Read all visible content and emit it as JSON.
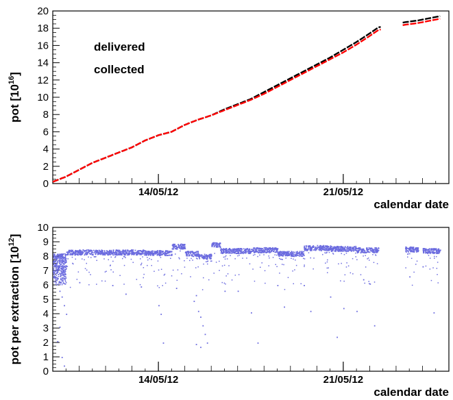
{
  "chart_data": [
    {
      "type": "line",
      "xlabel": "calendar date",
      "ylabel": "pot [10^16]",
      "ylabel_main": "pot [10",
      "ylabel_exp": "16",
      "ylabel_close": "]",
      "ylim": [
        0,
        20
      ],
      "yticks": [
        "0",
        "2",
        "4",
        "6",
        "8",
        "10",
        "12",
        "14",
        "16",
        "18",
        "20"
      ],
      "xlim": [
        "10/05/12",
        "25/05/12"
      ],
      "xticks": [
        "14/05/12",
        "21/05/12"
      ],
      "legend": {
        "placement": "top-left",
        "entries": [
          {
            "label": "delivered",
            "color": "#000000"
          },
          {
            "label": "collected",
            "color": "#ff0000"
          }
        ]
      },
      "series": [
        {
          "name": "delivered",
          "color": "#000000",
          "x": [
            "10/05/12 00:00",
            "10/05/12 12:00",
            "11/05/12 00:00",
            "11/05/12 12:00",
            "12/05/12 00:00",
            "12/05/12 12:00",
            "13/05/12 00:00",
            "13/05/12 12:00",
            "14/05/12 00:00",
            "14/05/12 12:00",
            "15/05/12 00:00",
            "15/05/12 12:00",
            "16/05/12 00:00",
            "16/05/12 12:00",
            "17/05/12 00:00",
            "17/05/12 12:00",
            "18/05/12 00:00",
            "18/05/12 12:00",
            "19/05/12 00:00",
            "19/05/12 12:00",
            "20/05/12 00:00",
            "20/05/12 12:00",
            "21/05/12 00:00",
            "21/05/12 12:00",
            "22/05/12 00:00",
            "22/05/12 08:00",
            "23/05/12 08:00",
            "23/05/12 20:00",
            "24/05/12 08:00",
            "24/05/12 16:00"
          ],
          "y": [
            0.2,
            0.8,
            1.6,
            2.4,
            3.0,
            3.6,
            4.2,
            5.0,
            5.6,
            6.0,
            6.8,
            7.4,
            7.9,
            8.6,
            9.2,
            9.8,
            10.6,
            11.4,
            12.2,
            13.0,
            13.8,
            14.6,
            15.5,
            16.4,
            17.4,
            18.1,
            18.7,
            18.9,
            19.2,
            19.4
          ]
        },
        {
          "name": "collected",
          "color": "#ff0000",
          "x": [
            "10/05/12 00:00",
            "10/05/12 12:00",
            "11/05/12 00:00",
            "11/05/12 12:00",
            "12/05/12 00:00",
            "12/05/12 12:00",
            "13/05/12 00:00",
            "13/05/12 12:00",
            "14/05/12 00:00",
            "14/05/12 12:00",
            "15/05/12 00:00",
            "15/05/12 12:00",
            "16/05/12 00:00",
            "16/05/12 12:00",
            "17/05/12 00:00",
            "17/05/12 12:00",
            "18/05/12 00:00",
            "18/05/12 12:00",
            "19/05/12 00:00",
            "19/05/12 12:00",
            "20/05/12 00:00",
            "20/05/12 12:00",
            "21/05/12 00:00",
            "21/05/12 12:00",
            "22/05/12 00:00",
            "22/05/12 08:00",
            "23/05/12 08:00",
            "23/05/12 20:00",
            "24/05/12 08:00",
            "24/05/12 16:00"
          ],
          "y": [
            0.2,
            0.8,
            1.6,
            2.4,
            3.0,
            3.6,
            4.2,
            5.0,
            5.6,
            6.0,
            6.8,
            7.4,
            7.9,
            8.5,
            9.1,
            9.7,
            10.4,
            11.2,
            12.0,
            12.8,
            13.6,
            14.4,
            15.2,
            16.1,
            17.1,
            17.8,
            18.4,
            18.6,
            18.9,
            19.1
          ]
        }
      ],
      "gaps": [
        [
          "22/05/12 10:00",
          "23/05/12 06:00"
        ]
      ]
    },
    {
      "type": "scatter",
      "xlabel": "calendar date",
      "ylabel": "pot per extraction [10^12]",
      "ylabel_main": "pot per extraction  [10",
      "ylabel_exp": "12",
      "ylabel_close": "]",
      "ylim": [
        0,
        10
      ],
      "yticks": [
        "0",
        "1",
        "2",
        "3",
        "4",
        "5",
        "6",
        "7",
        "8",
        "9",
        "10"
      ],
      "xlim": [
        "10/05/12",
        "25/05/12"
      ],
      "xticks": [
        "14/05/12",
        "21/05/12"
      ],
      "point_color": "#6b6bdf",
      "band_segments": [
        {
          "start": "10/05/12 12:00",
          "end": "13/05/12 12:00",
          "y": 8.3
        },
        {
          "start": "13/05/12 12:00",
          "end": "14/05/12 12:00",
          "y": 8.25
        },
        {
          "start": "14/05/12 12:00",
          "end": "15/05/12 00:00",
          "y": 8.7
        },
        {
          "start": "15/05/12 00:00",
          "end": "15/05/12 12:00",
          "y": 8.2
        },
        {
          "start": "15/05/12 12:00",
          "end": "16/05/12 00:00",
          "y": 8.0
        },
        {
          "start": "16/05/12 00:00",
          "end": "16/05/12 08:00",
          "y": 8.8
        },
        {
          "start": "16/05/12 08:00",
          "end": "17/05/12 12:00",
          "y": 8.4
        },
        {
          "start": "17/05/12 12:00",
          "end": "18/05/12 12:00",
          "y": 8.45
        },
        {
          "start": "18/05/12 12:00",
          "end": "19/05/12 12:00",
          "y": 8.2
        },
        {
          "start": "19/05/12 12:00",
          "end": "20/05/12 12:00",
          "y": 8.6
        },
        {
          "start": "20/05/12 12:00",
          "end": "21/05/12 12:00",
          "y": 8.55
        },
        {
          "start": "21/05/12 12:00",
          "end": "22/05/12 08:00",
          "y": 8.45
        },
        {
          "start": "23/05/12 08:00",
          "end": "23/05/12 20:00",
          "y": 8.5
        },
        {
          "start": "24/05/12 00:00",
          "end": "24/05/12 16:00",
          "y": 8.4
        }
      ],
      "early_dense": {
        "start": "10/05/12 00:00",
        "end": "10/05/12 12:00",
        "ymin": 6.0,
        "ymax": 8.2
      },
      "outliers": [
        {
          "x": "10/05/12 06:00",
          "y": 5.6
        },
        {
          "x": "10/05/12 08:00",
          "y": 5.2
        },
        {
          "x": "10/05/12 10:00",
          "y": 4.6
        },
        {
          "x": "10/05/12 12:00",
          "y": 4.0
        },
        {
          "x": "10/05/12 06:00",
          "y": 3.1
        },
        {
          "x": "10/05/12 04:00",
          "y": 2.1
        },
        {
          "x": "10/05/12 08:00",
          "y": 1.0
        },
        {
          "x": "10/05/12 10:00",
          "y": 0.4
        },
        {
          "x": "11/05/12 00:00",
          "y": 6.2
        },
        {
          "x": "12/05/12 06:00",
          "y": 6.0
        },
        {
          "x": "12/05/12 18:00",
          "y": 5.4
        },
        {
          "x": "13/05/12 08:00",
          "y": 5.9
        },
        {
          "x": "14/05/12 00:00",
          "y": 4.6
        },
        {
          "x": "14/05/12 02:00",
          "y": 4.0
        },
        {
          "x": "14/05/12 04:00",
          "y": 2.0
        },
        {
          "x": "14/05/12 16:00",
          "y": 5.8
        },
        {
          "x": "15/05/12 08:00",
          "y": 4.9
        },
        {
          "x": "15/05/12 10:00",
          "y": 5.3
        },
        {
          "x": "15/05/12 12:00",
          "y": 4.2
        },
        {
          "x": "15/05/12 14:00",
          "y": 3.8
        },
        {
          "x": "15/05/12 16:00",
          "y": 3.2
        },
        {
          "x": "15/05/12 18:00",
          "y": 2.6
        },
        {
          "x": "15/05/12 10:00",
          "y": 1.9
        },
        {
          "x": "15/05/12 14:00",
          "y": 1.7
        },
        {
          "x": "15/05/12 20:00",
          "y": 2.0
        },
        {
          "x": "16/05/12 12:00",
          "y": 5.6
        },
        {
          "x": "17/05/12 00:00",
          "y": 5.6
        },
        {
          "x": "17/05/12 12:00",
          "y": 4.1
        },
        {
          "x": "17/05/12 18:00",
          "y": 2.0
        },
        {
          "x": "18/05/12 12:00",
          "y": 6.0
        },
        {
          "x": "18/05/12 18:00",
          "y": 4.5
        },
        {
          "x": "19/05/12 12:00",
          "y": 6.0
        },
        {
          "x": "19/05/12 18:00",
          "y": 4.2
        },
        {
          "x": "20/05/12 12:00",
          "y": 5.2
        },
        {
          "x": "20/05/12 18:00",
          "y": 2.4
        },
        {
          "x": "21/05/12 00:00",
          "y": 4.4
        },
        {
          "x": "21/05/12 12:00",
          "y": 4.2
        },
        {
          "x": "21/05/12 18:00",
          "y": 6.4
        },
        {
          "x": "22/05/12 00:00",
          "y": 6.1
        },
        {
          "x": "22/05/12 04:00",
          "y": 3.2
        },
        {
          "x": "23/05/12 12:00",
          "y": 6.6
        },
        {
          "x": "24/05/12 00:00",
          "y": 7.3
        },
        {
          "x": "24/05/12 10:00",
          "y": 4.1
        }
      ]
    }
  ]
}
